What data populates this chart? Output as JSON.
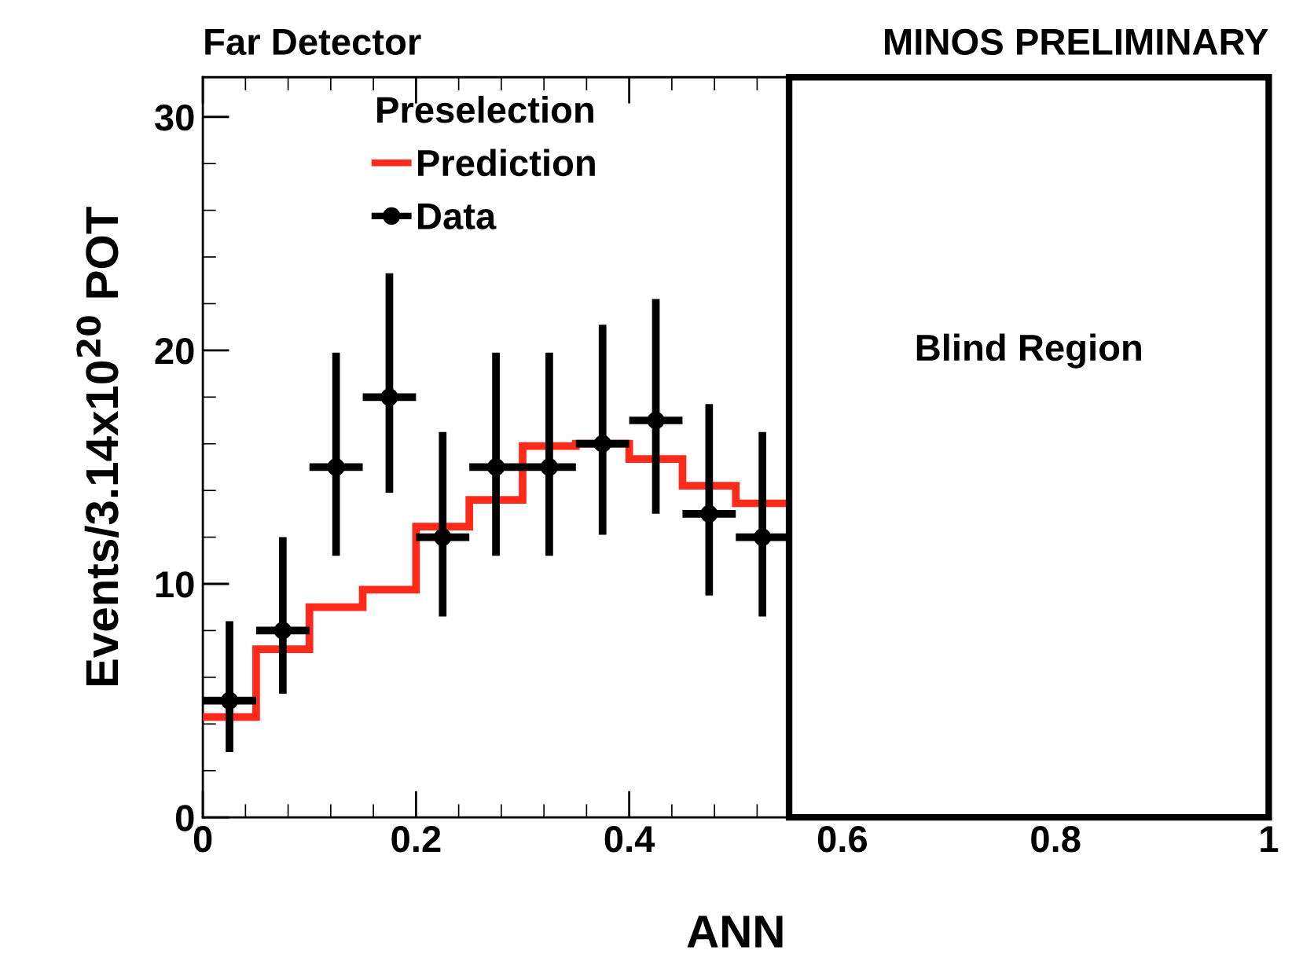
{
  "chart_data": {
    "type": "scatter",
    "title": "Far Detector",
    "xlabel": "ANN",
    "ylabel": "Events/3.14x10$^{20}$ POT",
    "legend_title": "Preselection",
    "annotations": [
      "MINOS PRELIMINARY"
    ],
    "xlim": [
      0,
      1
    ],
    "xticks": [
      0,
      0.2,
      0.4,
      0.6,
      0.8,
      1
    ],
    "ylim": [
      0,
      31.7
    ],
    "yticks": [
      0,
      10,
      20,
      30
    ],
    "grid": false,
    "legend": "top left",
    "bands": [
      {
        "axis": "x",
        "from": 0.55,
        "to": 1,
        "label": "Blind Region",
        "color": "#000000"
      }
    ],
    "series": [
      {
        "name": "Prediction",
        "type": "histogram",
        "color": "#ff2a1a",
        "bins": [
          0,
          0.05,
          0.1,
          0.15,
          0.2,
          0.25,
          0.3,
          0.35,
          0.4,
          0.45,
          0.5,
          0.55
        ],
        "values": [
          4.3,
          7.2,
          9.0,
          9.75,
          12.45,
          13.6,
          15.9,
          16.0,
          15.35,
          14.2,
          13.45
        ]
      },
      {
        "name": "Data",
        "marker": "circle",
        "color": "#000000",
        "x": [
          0.025,
          0.075,
          0.125,
          0.175,
          0.225,
          0.275,
          0.325,
          0.375,
          0.425,
          0.475,
          0.525
        ],
        "values": [
          5,
          8,
          15,
          18,
          12,
          15,
          15,
          16,
          17,
          13,
          12
        ],
        "xerrors": [
          0.025,
          0.025,
          0.025,
          0.025,
          0.025,
          0.025,
          0.025,
          0.025,
          0.025,
          0.025,
          0.025
        ],
        "errors": [
          [
            2.8,
            8.4
          ],
          [
            5.3,
            12.0
          ],
          [
            11.2,
            19.9
          ],
          [
            13.9,
            23.3
          ],
          [
            8.6,
            16.5
          ],
          [
            11.2,
            19.9
          ],
          [
            11.2,
            19.9
          ],
          [
            12.1,
            21.1
          ],
          [
            13.0,
            22.2
          ],
          [
            9.5,
            17.7
          ],
          [
            8.6,
            16.5
          ]
        ]
      }
    ]
  }
}
